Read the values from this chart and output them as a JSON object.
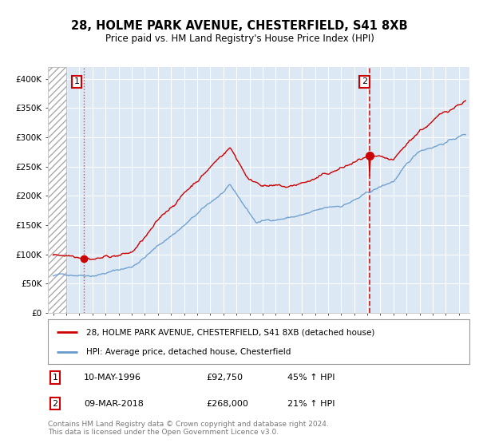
{
  "title": "28, HOLME PARK AVENUE, CHESTERFIELD, S41 8XB",
  "subtitle": "Price paid vs. HM Land Registry's House Price Index (HPI)",
  "sale1_date": "10-MAY-1996",
  "sale1_price": 92750,
  "sale1_label": "1",
  "sale1_year": 1996.37,
  "sale2_date": "09-MAR-2018",
  "sale2_price": 268000,
  "sale2_label": "2",
  "sale2_year": 2018.19,
  "legend_line1": "28, HOLME PARK AVENUE, CHESTERFIELD, S41 8XB (detached house)",
  "legend_line2": "HPI: Average price, detached house, Chesterfield",
  "note1_label": "1",
  "note1_date": "10-MAY-1996",
  "note1_price": "£92,750",
  "note1_pct": "45% ↑ HPI",
  "note2_label": "2",
  "note2_date": "09-MAR-2018",
  "note2_price": "£268,000",
  "note2_pct": "21% ↑ HPI",
  "footer": "Contains HM Land Registry data © Crown copyright and database right 2024.\nThis data is licensed under the Open Government Licence v3.0.",
  "line_color_red": "#cc0000",
  "line_color_blue": "#6699cc",
  "bg_color": "#dce9f5",
  "ylim": [
    0,
    420000
  ],
  "xlim_start": 1993.6,
  "xlim_end": 2025.8
}
